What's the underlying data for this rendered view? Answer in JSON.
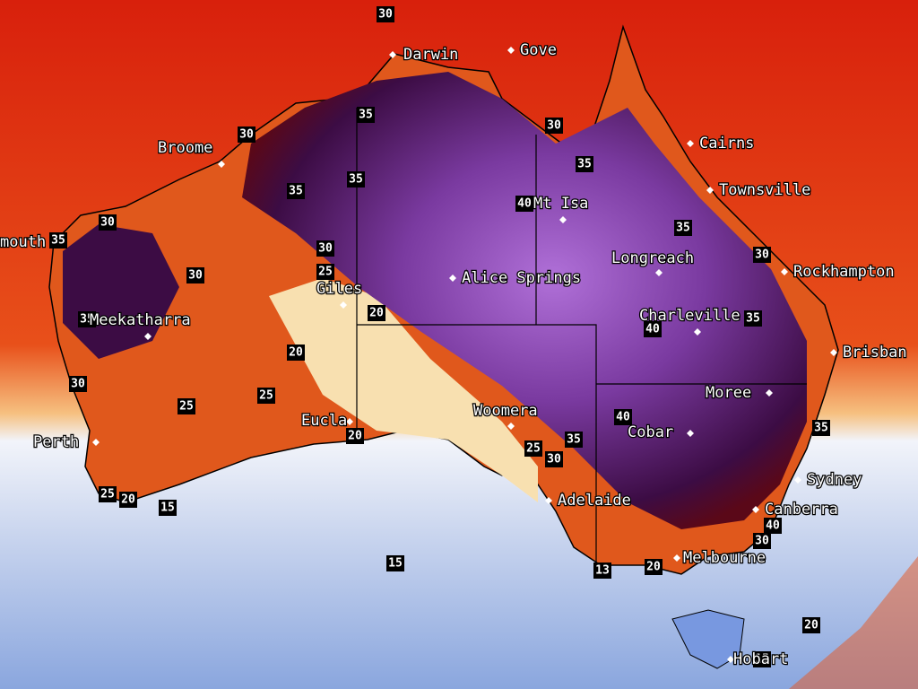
{
  "cities": [
    "Darwin",
    "Gove",
    "Broome",
    "Cairns",
    "Townsville",
    "Mt Isa",
    "Longreach",
    "Alice Springs",
    "Rockhampton",
    "Charleville",
    "mouth",
    "Meekatharra",
    "Giles",
    "Brisban",
    "Moree",
    "Cobar",
    "Woomera",
    "Eucla",
    "Perth",
    "Sydney",
    "Canberra",
    "Adelaide",
    "Melbourne",
    "Hobart"
  ],
  "isotherm_labels": [
    30,
    35,
    30,
    35,
    35,
    30,
    35,
    40,
    35,
    30,
    35,
    30,
    30,
    25,
    20,
    30,
    35,
    40,
    20,
    35,
    30,
    25,
    25,
    40,
    35,
    25,
    30,
    20,
    35,
    25,
    20,
    15,
    15,
    13,
    20,
    40,
    30,
    20,
    15
  ]
}
